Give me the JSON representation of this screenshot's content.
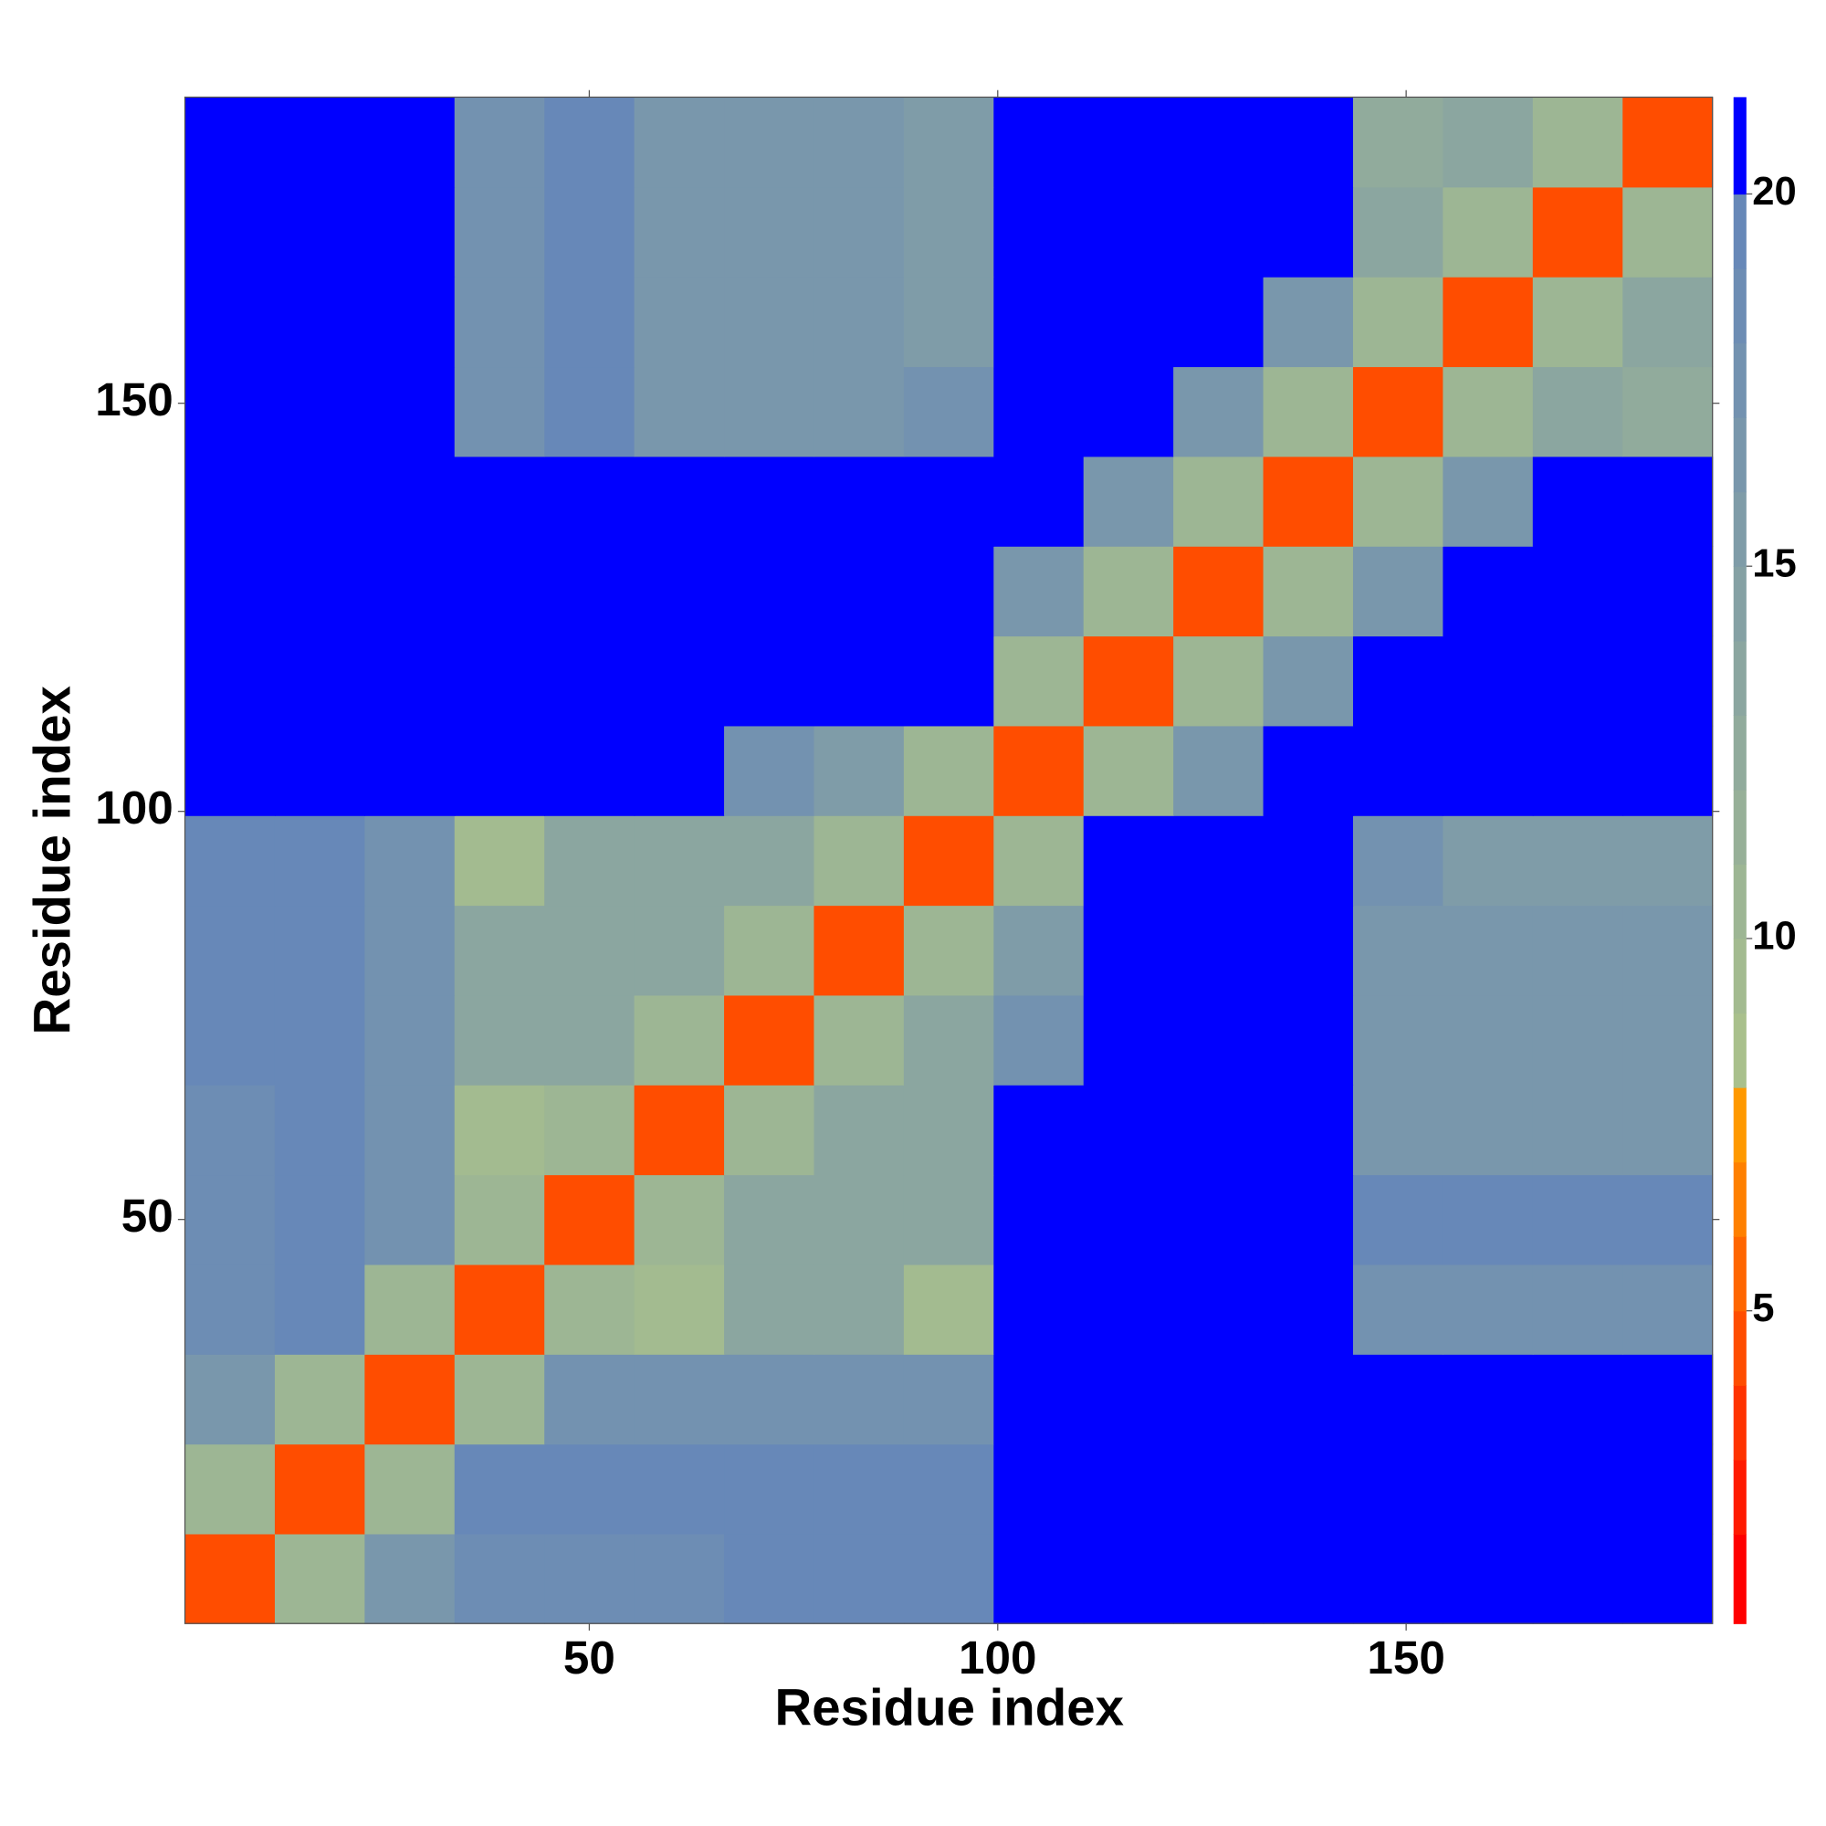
{
  "chart_data": {
    "type": "heatmap",
    "x_label": "Residue index",
    "y_label": "Residue index",
    "bins": [
      0.5,
      11.5,
      22.5,
      33.5,
      44.5,
      55.5,
      66.5,
      77.5,
      88.5,
      99.5,
      110.5,
      121.5,
      132.5,
      143.5,
      154.5,
      165.5,
      176.5,
      187.5
    ],
    "values": [
      [
        4,
        10,
        16,
        18,
        18,
        18,
        19,
        19,
        19,
        25,
        25,
        25,
        25,
        25,
        25,
        25,
        25
      ],
      [
        10,
        4,
        10,
        19,
        19,
        19,
        19,
        19,
        19,
        25,
        25,
        25,
        25,
        25,
        25,
        25,
        25
      ],
      [
        16,
        10,
        4,
        10,
        17,
        17,
        17,
        17,
        17,
        25,
        25,
        25,
        25,
        25,
        25,
        25,
        25
      ],
      [
        18,
        19,
        10,
        4,
        10,
        9,
        13,
        13,
        9,
        25,
        25,
        25,
        25,
        17,
        17,
        17,
        17
      ],
      [
        18,
        19,
        17,
        10,
        4,
        10,
        13,
        13,
        13,
        25,
        25,
        25,
        25,
        19,
        19,
        19,
        19
      ],
      [
        18,
        19,
        17,
        9,
        10,
        4,
        10,
        13,
        13,
        25,
        25,
        25,
        25,
        16,
        16,
        16,
        16
      ],
      [
        19,
        19,
        17,
        13,
        13,
        10,
        4,
        10,
        13,
        17,
        25,
        25,
        25,
        16,
        16,
        16,
        16
      ],
      [
        19,
        19,
        17,
        13,
        13,
        13,
        10,
        4,
        10,
        15,
        25,
        25,
        25,
        16,
        16,
        16,
        16
      ],
      [
        19,
        19,
        17,
        9,
        13,
        13,
        13,
        10,
        4,
        10,
        25,
        25,
        25,
        17,
        15,
        15,
        15
      ],
      [
        25,
        25,
        25,
        25,
        25,
        25,
        17,
        15,
        10,
        4,
        10,
        16,
        21,
        25,
        25,
        25,
        25
      ],
      [
        25,
        25,
        25,
        25,
        25,
        25,
        25,
        25,
        25,
        10,
        4,
        10,
        16,
        25,
        25,
        25,
        25
      ],
      [
        25,
        25,
        25,
        25,
        25,
        25,
        25,
        25,
        25,
        16,
        10,
        4,
        10,
        16,
        25,
        25,
        25
      ],
      [
        25,
        25,
        25,
        25,
        25,
        25,
        25,
        25,
        25,
        21,
        16,
        10,
        4,
        10,
        16,
        25,
        25
      ],
      [
        25,
        25,
        25,
        17,
        19,
        16,
        16,
        16,
        17,
        25,
        25,
        16,
        10,
        4,
        10,
        13,
        12
      ],
      [
        25,
        25,
        25,
        17,
        19,
        16,
        16,
        16,
        15,
        25,
        25,
        25,
        16,
        10,
        4,
        10,
        13
      ],
      [
        25,
        25,
        25,
        17,
        19,
        16,
        16,
        16,
        15,
        25,
        25,
        25,
        25,
        13,
        10,
        4,
        10
      ],
      [
        25,
        25,
        25,
        17,
        19,
        16,
        16,
        16,
        15,
        25,
        25,
        25,
        25,
        12,
        13,
        10,
        4
      ]
    ],
    "xlim": [
      0.5,
      187.5
    ],
    "ylim": [
      0.5,
      187.5
    ],
    "xticks": [
      50,
      100,
      150
    ],
    "yticks": [
      50,
      100,
      150
    ],
    "clim": [
      0.8,
      21.3
    ],
    "cticks": [
      5,
      10,
      15,
      20
    ],
    "levels": [
      0.8,
      2,
      3,
      4,
      5,
      6,
      7,
      8,
      9,
      10,
      11,
      12,
      13,
      14,
      15,
      16,
      17,
      18,
      19,
      20,
      21.3
    ],
    "colors": [
      "#ff0000",
      "#ff1a00",
      "#ff3300",
      "#ff4d00",
      "#ff6600",
      "#ff8000",
      "#ff9900",
      "#a9c08c",
      "#a3bb90",
      "#9db694",
      "#97b098",
      "#91ab9c",
      "#8ba6a0",
      "#85a1a4",
      "#7f9ca8",
      "#7997ac",
      "#7392b0",
      "#6d8db4",
      "#6788b8",
      "#0000ff"
    ]
  }
}
